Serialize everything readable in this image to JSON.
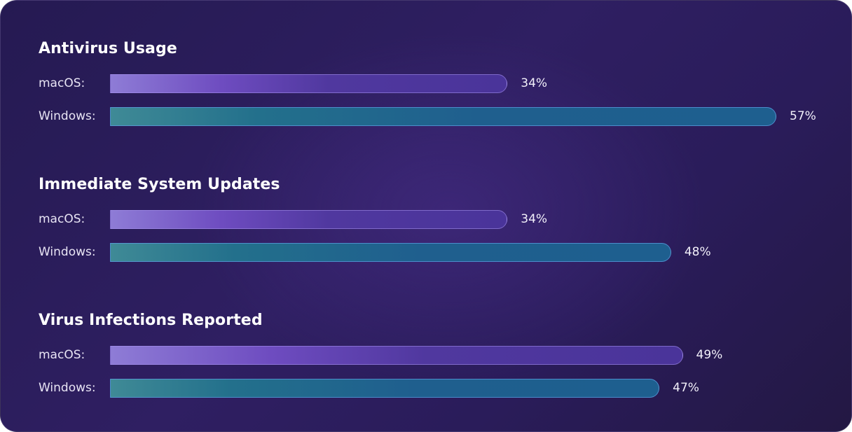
{
  "chart_data": {
    "type": "bar",
    "orientation": "horizontal",
    "xlim": [
      0,
      57
    ],
    "grid": false,
    "colors": {
      "macOS": "#6a4bbd",
      "Windows": "#1f6a8f"
    },
    "groups": [
      {
        "title": "Antivirus Usage",
        "rows": [
          {
            "label": "macOS:",
            "series": "macOS",
            "value": 34,
            "value_label": "34%"
          },
          {
            "label": "Windows:",
            "series": "Windows",
            "value": 57,
            "value_label": "57%"
          }
        ]
      },
      {
        "title": "Immediate System Updates",
        "rows": [
          {
            "label": "macOS:",
            "series": "macOS",
            "value": 34,
            "value_label": "34%"
          },
          {
            "label": "Windows:",
            "series": "Windows",
            "value": 48,
            "value_label": "48%"
          }
        ]
      },
      {
        "title": "Virus Infections Reported",
        "rows": [
          {
            "label": "macOS:",
            "series": "macOS",
            "value": 49,
            "value_label": "49%"
          },
          {
            "label": "Windows:",
            "series": "Windows",
            "value": 47,
            "value_label": "47%"
          }
        ]
      }
    ]
  }
}
